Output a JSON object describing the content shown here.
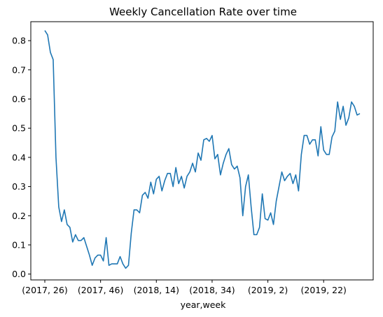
{
  "chart_data": {
    "type": "line",
    "title": "Weekly Cancellation Rate over time",
    "xlabel": "year,week",
    "ylabel": "",
    "grid": false,
    "ylim": [
      -0.02,
      0.865
    ],
    "y_ticks": [
      0.0,
      0.1,
      0.2,
      0.3,
      0.4,
      0.5,
      0.6,
      0.7,
      0.8
    ],
    "y_tick_labels": [
      "0.0",
      "0.1",
      "0.2",
      "0.3",
      "0.4",
      "0.5",
      "0.6",
      "0.7",
      "0.8"
    ],
    "x_ticks": [
      "(2017, 26)",
      "(2017, 46)",
      "(2018, 14)",
      "(2018, 34)",
      "(2019, 2)",
      "(2019, 22)"
    ],
    "color": "#1f77b4",
    "series": [
      {
        "x": [
          "(2017, 26)",
          "(2017, 27)",
          "(2017, 28)",
          "(2017, 29)",
          "(2017, 30)",
          "(2017, 31)",
          "(2017, 32)",
          "(2017, 33)",
          "(2017, 34)",
          "(2017, 35)",
          "(2017, 36)",
          "(2017, 37)",
          "(2017, 38)",
          "(2017, 39)",
          "(2017, 40)",
          "(2017, 41)",
          "(2017, 42)",
          "(2017, 43)",
          "(2017, 44)",
          "(2017, 45)",
          "(2017, 46)",
          "(2017, 47)",
          "(2017, 48)",
          "(2017, 49)",
          "(2017, 50)",
          "(2017, 51)",
          "(2017, 52)",
          "(2018, 1)",
          "(2018, 2)",
          "(2018, 3)",
          "(2018, 4)",
          "(2018, 5)",
          "(2018, 6)",
          "(2018, 7)",
          "(2018, 8)",
          "(2018, 9)",
          "(2018, 10)",
          "(2018, 11)",
          "(2018, 12)",
          "(2018, 13)",
          "(2018, 14)",
          "(2018, 15)",
          "(2018, 16)",
          "(2018, 17)",
          "(2018, 18)",
          "(2018, 19)",
          "(2018, 20)",
          "(2018, 21)",
          "(2018, 22)",
          "(2018, 23)",
          "(2018, 24)",
          "(2018, 25)",
          "(2018, 26)",
          "(2018, 27)",
          "(2018, 28)",
          "(2018, 29)",
          "(2018, 30)",
          "(2018, 31)",
          "(2018, 32)",
          "(2018, 33)",
          "(2018, 34)",
          "(2018, 35)",
          "(2018, 36)",
          "(2018, 37)",
          "(2018, 38)",
          "(2018, 39)",
          "(2018, 40)",
          "(2018, 41)",
          "(2018, 42)",
          "(2018, 43)",
          "(2018, 44)",
          "(2018, 45)",
          "(2018, 46)",
          "(2018, 47)",
          "(2018, 48)",
          "(2018, 49)",
          "(2018, 50)",
          "(2018, 51)",
          "(2018, 52)",
          "(2019, 1)",
          "(2019, 2)",
          "(2019, 3)",
          "(2019, 4)",
          "(2019, 5)",
          "(2019, 6)",
          "(2019, 7)",
          "(2019, 8)",
          "(2019, 9)",
          "(2019, 10)",
          "(2019, 11)",
          "(2019, 12)",
          "(2019, 13)",
          "(2019, 14)",
          "(2019, 15)",
          "(2019, 16)",
          "(2019, 17)",
          "(2019, 18)",
          "(2019, 19)",
          "(2019, 20)",
          "(2019, 21)",
          "(2019, 22)",
          "(2019, 23)",
          "(2019, 24)",
          "(2019, 25)",
          "(2019, 26)",
          "(2019, 27)",
          "(2019, 28)",
          "(2019, 29)",
          "(2019, 30)",
          "(2019, 31)",
          "(2019, 32)",
          "(2019, 33)",
          "(2019, 34)",
          "(2019, 35)"
        ],
        "values": [
          0.835,
          0.82,
          0.76,
          0.735,
          0.4,
          0.23,
          0.18,
          0.22,
          0.17,
          0.16,
          0.11,
          0.135,
          0.115,
          0.115,
          0.125,
          0.095,
          0.065,
          0.03,
          0.055,
          0.065,
          0.065,
          0.045,
          0.125,
          0.03,
          0.035,
          0.035,
          0.035,
          0.06,
          0.035,
          0.02,
          0.03,
          0.14,
          0.22,
          0.22,
          0.21,
          0.27,
          0.28,
          0.26,
          0.315,
          0.275,
          0.325,
          0.335,
          0.285,
          0.32,
          0.345,
          0.345,
          0.3,
          0.365,
          0.31,
          0.335,
          0.295,
          0.335,
          0.35,
          0.38,
          0.35,
          0.415,
          0.39,
          0.46,
          0.465,
          0.455,
          0.475,
          0.395,
          0.41,
          0.34,
          0.38,
          0.41,
          0.43,
          0.375,
          0.36,
          0.37,
          0.33,
          0.2,
          0.3,
          0.34,
          0.23,
          0.135,
          0.135,
          0.16,
          0.275,
          0.19,
          0.185,
          0.21,
          0.17,
          0.25,
          0.3,
          0.35,
          0.32,
          0.335,
          0.345,
          0.31,
          0.34,
          0.285,
          0.41,
          0.475,
          0.475,
          0.445,
          0.46,
          0.46,
          0.405,
          0.505,
          0.425,
          0.41,
          0.41,
          0.47,
          0.49,
          0.59,
          0.53,
          0.575,
          0.51,
          0.535,
          0.59,
          0.575,
          0.545,
          0.55
        ]
      }
    ]
  }
}
